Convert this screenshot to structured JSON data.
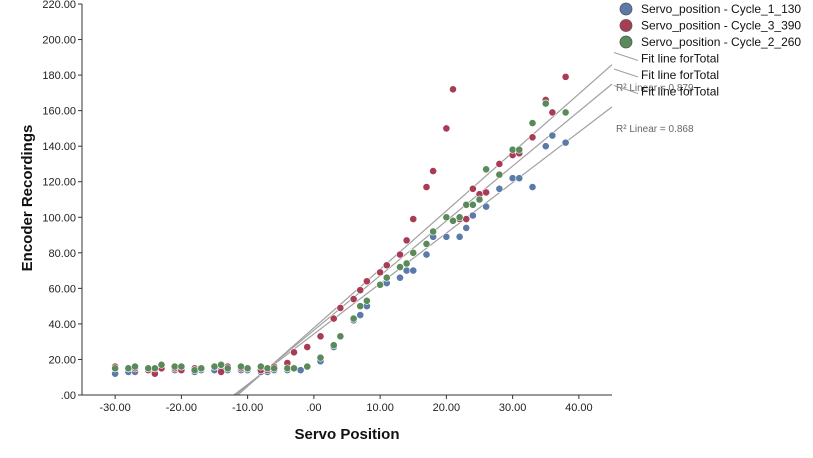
{
  "chart_data": {
    "type": "scatter",
    "xlabel": "Servo Position",
    "ylabel": "Encoder Recordings",
    "xlim": [
      -35,
      45
    ],
    "ylim": [
      0,
      220
    ],
    "x_ticks": [
      {
        "value": -30,
        "label": "-30.00"
      },
      {
        "value": -20,
        "label": "-20.00"
      },
      {
        "value": -10,
        "label": "-10.00"
      },
      {
        "value": 0,
        "label": ".00"
      },
      {
        "value": 10,
        "label": "10.00"
      },
      {
        "value": 20,
        "label": "20.00"
      },
      {
        "value": 30,
        "label": "30.00"
      },
      {
        "value": 40,
        "label": "40.00"
      }
    ],
    "y_ticks": [
      {
        "value": 0,
        "label": ".00"
      },
      {
        "value": 20,
        "label": "20.00"
      },
      {
        "value": 40,
        "label": "40.00"
      },
      {
        "value": 60,
        "label": "60.00"
      },
      {
        "value": 80,
        "label": "80.00"
      },
      {
        "value": 100,
        "label": "100.00"
      },
      {
        "value": 120,
        "label": "120.00"
      },
      {
        "value": 140,
        "label": "140.00"
      },
      {
        "value": 160,
        "label": "160.00"
      },
      {
        "value": 180,
        "label": "180.00"
      },
      {
        "value": 200,
        "label": "200.00"
      },
      {
        "value": 220,
        "label": "220.00"
      }
    ],
    "grid": false,
    "legend_position": "top-right",
    "series": [
      {
        "name": "Servo_position - Cycle_1_130",
        "color": "#5b7aa8",
        "points": [
          [
            -30,
            12
          ],
          [
            -28,
            13
          ],
          [
            -27,
            13
          ],
          [
            -25,
            14
          ],
          [
            -24,
            14
          ],
          [
            -23,
            15
          ],
          [
            -21,
            14
          ],
          [
            -20,
            14
          ],
          [
            -18,
            13
          ],
          [
            -17,
            14
          ],
          [
            -15,
            14
          ],
          [
            -14,
            14
          ],
          [
            -13,
            14
          ],
          [
            -11,
            14
          ],
          [
            -10,
            14
          ],
          [
            -8,
            13
          ],
          [
            -7,
            13
          ],
          [
            -6,
            14
          ],
          [
            -4,
            14
          ],
          [
            -2,
            14
          ],
          [
            1,
            19
          ],
          [
            3,
            27
          ],
          [
            4,
            33
          ],
          [
            6,
            42
          ],
          [
            7,
            45
          ],
          [
            8,
            50
          ],
          [
            10,
            62
          ],
          [
            11,
            63
          ],
          [
            13,
            66
          ],
          [
            14,
            70
          ],
          [
            15,
            70
          ],
          [
            17,
            79
          ],
          [
            18,
            89
          ],
          [
            20,
            89
          ],
          [
            22,
            89
          ],
          [
            23,
            94
          ],
          [
            24,
            101
          ],
          [
            26,
            106
          ],
          [
            28,
            116
          ],
          [
            30,
            122
          ],
          [
            31,
            122
          ],
          [
            33,
            117
          ],
          [
            35,
            140
          ],
          [
            36,
            146
          ],
          [
            38,
            142
          ]
        ]
      },
      {
        "name": "Servo_position - Cycle_3_390",
        "color": "#a83c54",
        "points": [
          [
            -30,
            16
          ],
          [
            -28,
            15
          ],
          [
            -27,
            15
          ],
          [
            -25,
            14
          ],
          [
            -24,
            12
          ],
          [
            -23,
            15
          ],
          [
            -21,
            15
          ],
          [
            -20,
            14
          ],
          [
            -18,
            15
          ],
          [
            -17,
            15
          ],
          [
            -15,
            16
          ],
          [
            -14,
            13
          ],
          [
            -13,
            16
          ],
          [
            -11,
            15
          ],
          [
            -10,
            15
          ],
          [
            -8,
            14
          ],
          [
            -7,
            14
          ],
          [
            -6,
            16
          ],
          [
            -4,
            18
          ],
          [
            -3,
            24
          ],
          [
            -1,
            27
          ],
          [
            1,
            33
          ],
          [
            3,
            43
          ],
          [
            4,
            49
          ],
          [
            6,
            54
          ],
          [
            7,
            59
          ],
          [
            8,
            64
          ],
          [
            10,
            69
          ],
          [
            11,
            73
          ],
          [
            13,
            79
          ],
          [
            14,
            87
          ],
          [
            15,
            99
          ],
          [
            17,
            117
          ],
          [
            18,
            126
          ],
          [
            20,
            150
          ],
          [
            21,
            172
          ],
          [
            22,
            99
          ],
          [
            23,
            99
          ],
          [
            24,
            116
          ],
          [
            25,
            113
          ],
          [
            26,
            114
          ],
          [
            28,
            130
          ],
          [
            30,
            135
          ],
          [
            31,
            136
          ],
          [
            33,
            145
          ],
          [
            35,
            166
          ],
          [
            36,
            159
          ],
          [
            38,
            179
          ]
        ]
      },
      {
        "name": "Servo_position - Cycle_2_260",
        "color": "#5a8a5a",
        "points": [
          [
            -30,
            15
          ],
          [
            -28,
            15
          ],
          [
            -27,
            16
          ],
          [
            -25,
            15
          ],
          [
            -24,
            15
          ],
          [
            -23,
            17
          ],
          [
            -21,
            16
          ],
          [
            -20,
            16
          ],
          [
            -18,
            14
          ],
          [
            -17,
            15
          ],
          [
            -15,
            16
          ],
          [
            -14,
            17
          ],
          [
            -13,
            15
          ],
          [
            -11,
            16
          ],
          [
            -10,
            15
          ],
          [
            -8,
            16
          ],
          [
            -7,
            15
          ],
          [
            -6,
            15
          ],
          [
            -4,
            15
          ],
          [
            -3,
            15
          ],
          [
            -1,
            16
          ],
          [
            1,
            21
          ],
          [
            3,
            28
          ],
          [
            4,
            33
          ],
          [
            6,
            43
          ],
          [
            7,
            50
          ],
          [
            8,
            53
          ],
          [
            10,
            62
          ],
          [
            11,
            66
          ],
          [
            13,
            72
          ],
          [
            14,
            74
          ],
          [
            15,
            80
          ],
          [
            17,
            85
          ],
          [
            18,
            92
          ],
          [
            20,
            100
          ],
          [
            21,
            98
          ],
          [
            22,
            100
          ],
          [
            23,
            107
          ],
          [
            24,
            107
          ],
          [
            25,
            110
          ],
          [
            26,
            127
          ],
          [
            28,
            124
          ],
          [
            30,
            138
          ],
          [
            31,
            138
          ],
          [
            33,
            153
          ],
          [
            35,
            164
          ],
          [
            38,
            159
          ]
        ]
      }
    ],
    "fit_lines": [
      {
        "name": "Fit line forTotal",
        "intercept": 37.8,
        "slope": 3.29,
        "r2_label": "R² Linear = 0.879"
      },
      {
        "name": "Fit line forTotal",
        "intercept": 34.3,
        "slope": 2.84,
        "r2_label": "R² Linear = 0.868"
      },
      {
        "name": "Fit line forTotal",
        "intercept": 36.4,
        "slope": 3.08,
        "r2_label": ""
      }
    ],
    "fit_line_color": "#a0a0a0"
  }
}
